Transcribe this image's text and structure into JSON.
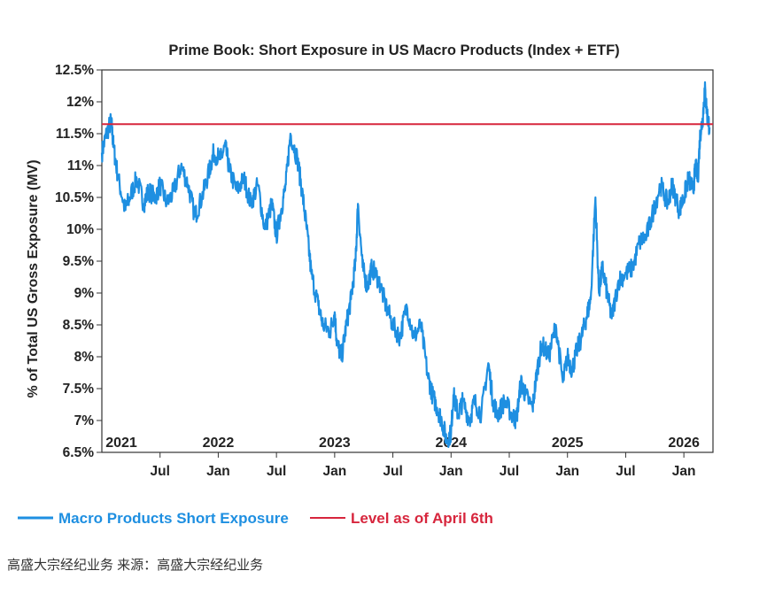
{
  "chart_data": {
    "type": "line",
    "title": "Prime Book: Short Exposure in US Macro Products (Index + ETF)",
    "ylabel": "% of Total US Gross Exposure (MV)",
    "xlabel": "",
    "ylim": [
      6.5,
      12.5
    ],
    "y_ticks": [
      "6.5%",
      "7%",
      "7.5%",
      "8%",
      "8.5%",
      "9%",
      "9.5%",
      "10%",
      "10.5%",
      "11%",
      "11.5%",
      "12%",
      "12.5%"
    ],
    "y_tick_values": [
      6.5,
      7,
      7.5,
      8,
      8.5,
      9,
      9.5,
      10,
      10.5,
      11,
      11.5,
      12,
      12.5
    ],
    "xlim": [
      2021.0,
      2026.25
    ],
    "year_labels": [
      {
        "label": "2021",
        "x": 2021.0
      },
      {
        "label": "2022",
        "x": 2022.0
      },
      {
        "label": "2023",
        "x": 2023.0
      },
      {
        "label": "2024",
        "x": 2024.0
      },
      {
        "label": "2025",
        "x": 2025.0
      },
      {
        "label": "2026",
        "x": 2026.0
      }
    ],
    "month_ticks": [
      {
        "label": "Jul",
        "x": 2021.5
      },
      {
        "label": "Jan",
        "x": 2022.0
      },
      {
        "label": "Jul",
        "x": 2022.5
      },
      {
        "label": "Jan",
        "x": 2023.0
      },
      {
        "label": "Jul",
        "x": 2023.5
      },
      {
        "label": "Jan",
        "x": 2024.0
      },
      {
        "label": "Jul",
        "x": 2024.5
      },
      {
        "label": "Jan",
        "x": 2025.0
      },
      {
        "label": "Jul",
        "x": 2025.5
      },
      {
        "label": "Jan",
        "x": 2026.0
      }
    ],
    "series": [
      {
        "name": "Macro Products Short Exposure",
        "color": "#1E8FE1",
        "x": [
          2021.0,
          2021.04,
          2021.08,
          2021.1,
          2021.14,
          2021.2,
          2021.24,
          2021.3,
          2021.36,
          2021.4,
          2021.46,
          2021.5,
          2021.56,
          2021.62,
          2021.68,
          2021.74,
          2021.8,
          2021.86,
          2021.92,
          2021.96,
          2022.02,
          2022.06,
          2022.1,
          2022.16,
          2022.22,
          2022.28,
          2022.34,
          2022.4,
          2022.46,
          2022.5,
          2022.54,
          2022.58,
          2022.62,
          2022.68,
          2022.72,
          2022.76,
          2022.8,
          2022.86,
          2022.9,
          2022.96,
          2023.0,
          2023.02,
          2023.06,
          2023.1,
          2023.14,
          2023.18,
          2023.2,
          2023.24,
          2023.28,
          2023.32,
          2023.38,
          2023.44,
          2023.5,
          2023.56,
          2023.62,
          2023.68,
          2023.74,
          2023.8,
          2023.84,
          2023.88,
          2023.92,
          2023.96,
          2024.0,
          2024.02,
          2024.06,
          2024.1,
          2024.16,
          2024.2,
          2024.26,
          2024.32,
          2024.36,
          2024.4,
          2024.46,
          2024.52,
          2024.56,
          2024.6,
          2024.64,
          2024.7,
          2024.74,
          2024.78,
          2024.84,
          2024.9,
          2024.96,
          2025.0,
          2025.04,
          2025.08,
          2025.12,
          2025.16,
          2025.2,
          2025.24,
          2025.27,
          2025.3,
          2025.34,
          2025.38,
          2025.44,
          2025.5,
          2025.56,
          2025.62,
          2025.68,
          2025.74,
          2025.8,
          2025.86,
          2025.9,
          2025.96,
          2026.0,
          2026.04,
          2026.08,
          2026.1,
          2026.12,
          2026.14,
          2026.16,
          2026.18,
          2026.2,
          2026.22
        ],
        "values": [
          11.2,
          11.5,
          11.7,
          11.3,
          10.8,
          10.3,
          10.5,
          10.8,
          10.4,
          10.6,
          10.5,
          10.7,
          10.4,
          10.6,
          11.0,
          10.7,
          10.2,
          10.5,
          10.9,
          11.2,
          11.1,
          11.3,
          10.9,
          10.6,
          10.8,
          10.4,
          10.7,
          10.0,
          10.4,
          9.9,
          10.3,
          10.7,
          11.5,
          11.1,
          10.6,
          10.0,
          9.3,
          8.8,
          8.5,
          8.4,
          8.7,
          8.2,
          8.0,
          8.5,
          8.9,
          9.5,
          10.4,
          9.4,
          9.1,
          9.4,
          9.2,
          8.8,
          8.5,
          8.3,
          8.8,
          8.3,
          8.5,
          7.7,
          7.4,
          7.2,
          7.0,
          6.7,
          6.8,
          7.4,
          7.1,
          7.3,
          7.0,
          7.3,
          7.1,
          7.9,
          7.3,
          7.1,
          7.3,
          7.1,
          7.0,
          7.6,
          7.4,
          7.2,
          7.8,
          8.2,
          8.0,
          8.5,
          7.6,
          8.0,
          7.8,
          8.1,
          8.3,
          8.6,
          8.9,
          10.5,
          9.0,
          9.4,
          9.0,
          8.6,
          9.2,
          9.3,
          9.4,
          9.8,
          9.9,
          10.3,
          10.7,
          10.4,
          10.7,
          10.3,
          10.5,
          10.8,
          10.6,
          11.0,
          10.8,
          11.5,
          11.7,
          12.2,
          11.8,
          11.6
        ]
      },
      {
        "name": "Level as of April 6th",
        "color": "#D7263D",
        "value": 11.65
      }
    ]
  },
  "legend": {
    "items": [
      {
        "label": "Macro Products Short Exposure",
        "color": "#1E8FE1"
      },
      {
        "label": "Level as of April 6th",
        "color": "#D7263D"
      }
    ]
  },
  "footer": {
    "source_text": "高盛大宗经纪业务 来源：高盛大宗经纪业务"
  }
}
